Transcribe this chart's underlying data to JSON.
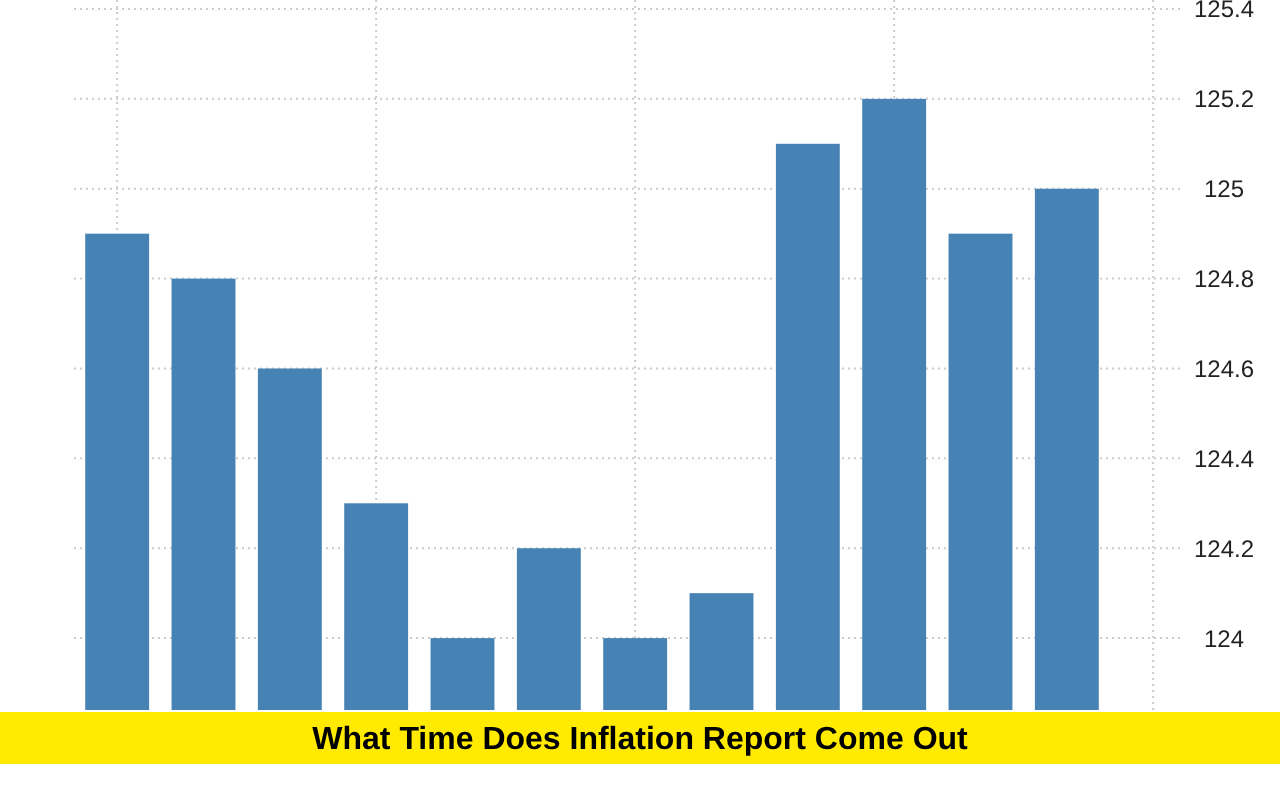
{
  "chart_data": {
    "type": "bar",
    "title": "What Time Does Inflation Report Come Out",
    "categories": [
      null,
      null,
      null,
      null,
      null,
      null,
      null,
      null,
      null,
      null,
      null,
      null
    ],
    "values": [
      124.9,
      124.8,
      124.6,
      124.3,
      124.0,
      124.2,
      124.0,
      124.1,
      125.1,
      125.2,
      124.9,
      125.0
    ],
    "color": "#4682b4",
    "ylim": [
      123.84,
      125.42
    ],
    "yticks": [
      124,
      124.2,
      124.4,
      124.6,
      124.8,
      125,
      125.2,
      125.4
    ],
    "grid": true
  }
}
